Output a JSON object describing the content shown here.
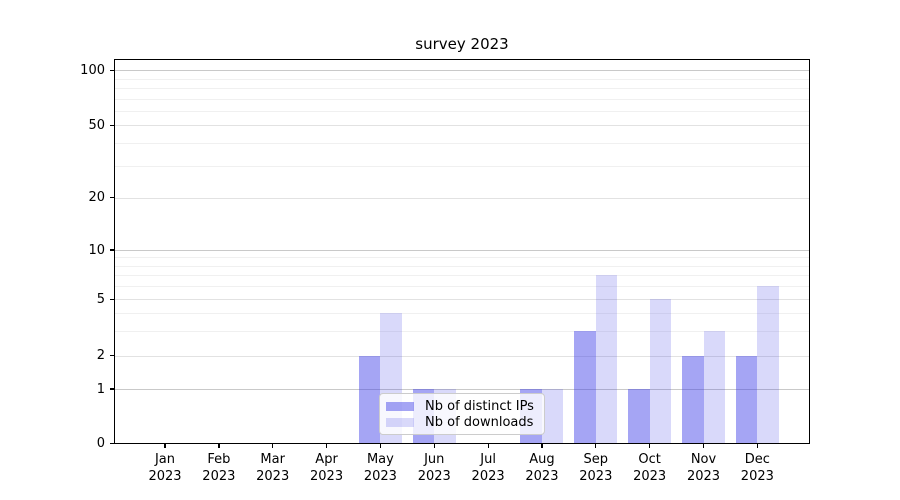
{
  "chart_data": {
    "type": "bar",
    "title": "survey 2023",
    "categories": [
      "Jan 2023",
      "Feb 2023",
      "Mar 2023",
      "Apr 2023",
      "May 2023",
      "Jun 2023",
      "Jul 2023",
      "Aug 2023",
      "Sep 2023",
      "Oct 2023",
      "Nov 2023",
      "Dec 2023"
    ],
    "category_month": [
      "Jan",
      "Feb",
      "Mar",
      "Apr",
      "May",
      "Jun",
      "Jul",
      "Aug",
      "Sep",
      "Oct",
      "Nov",
      "Dec"
    ],
    "category_year": [
      "2023",
      "2023",
      "2023",
      "2023",
      "2023",
      "2023",
      "2023",
      "2023",
      "2023",
      "2023",
      "2023",
      "2023"
    ],
    "series": [
      {
        "name": "Nb of distinct IPs",
        "color": "#4040e8",
        "alpha": 0.47,
        "values": [
          0,
          0,
          0,
          0,
          2,
          1,
          0,
          1,
          3,
          1,
          2,
          2
        ]
      },
      {
        "name": "Nb of downloads",
        "color": "#4040e8",
        "alpha": 0.2,
        "values": [
          0,
          0,
          0,
          0,
          4,
          1,
          0,
          1,
          7,
          5,
          3,
          6
        ]
      }
    ],
    "xlabel": "",
    "ylabel": "",
    "yscale": "log-like (linear 0-1, log above)",
    "yticks": [
      0,
      1,
      2,
      5,
      10,
      20,
      50,
      100
    ],
    "yticks_minor": [
      3,
      4,
      6,
      7,
      8,
      9,
      30,
      40,
      60,
      70,
      80,
      90
    ],
    "ylim": [
      0,
      115
    ],
    "grid": "horizontal",
    "legend_position": "inside lower-center-left"
  },
  "colors": {
    "background": "#ffffff",
    "axis": "#000000",
    "grid_major": "#c9c9c9",
    "grid_mid": "#e2e2e2",
    "grid_minor": "#f0f0f0",
    "bar_accent": "#4040e8",
    "legend_border": "#cccccc"
  }
}
